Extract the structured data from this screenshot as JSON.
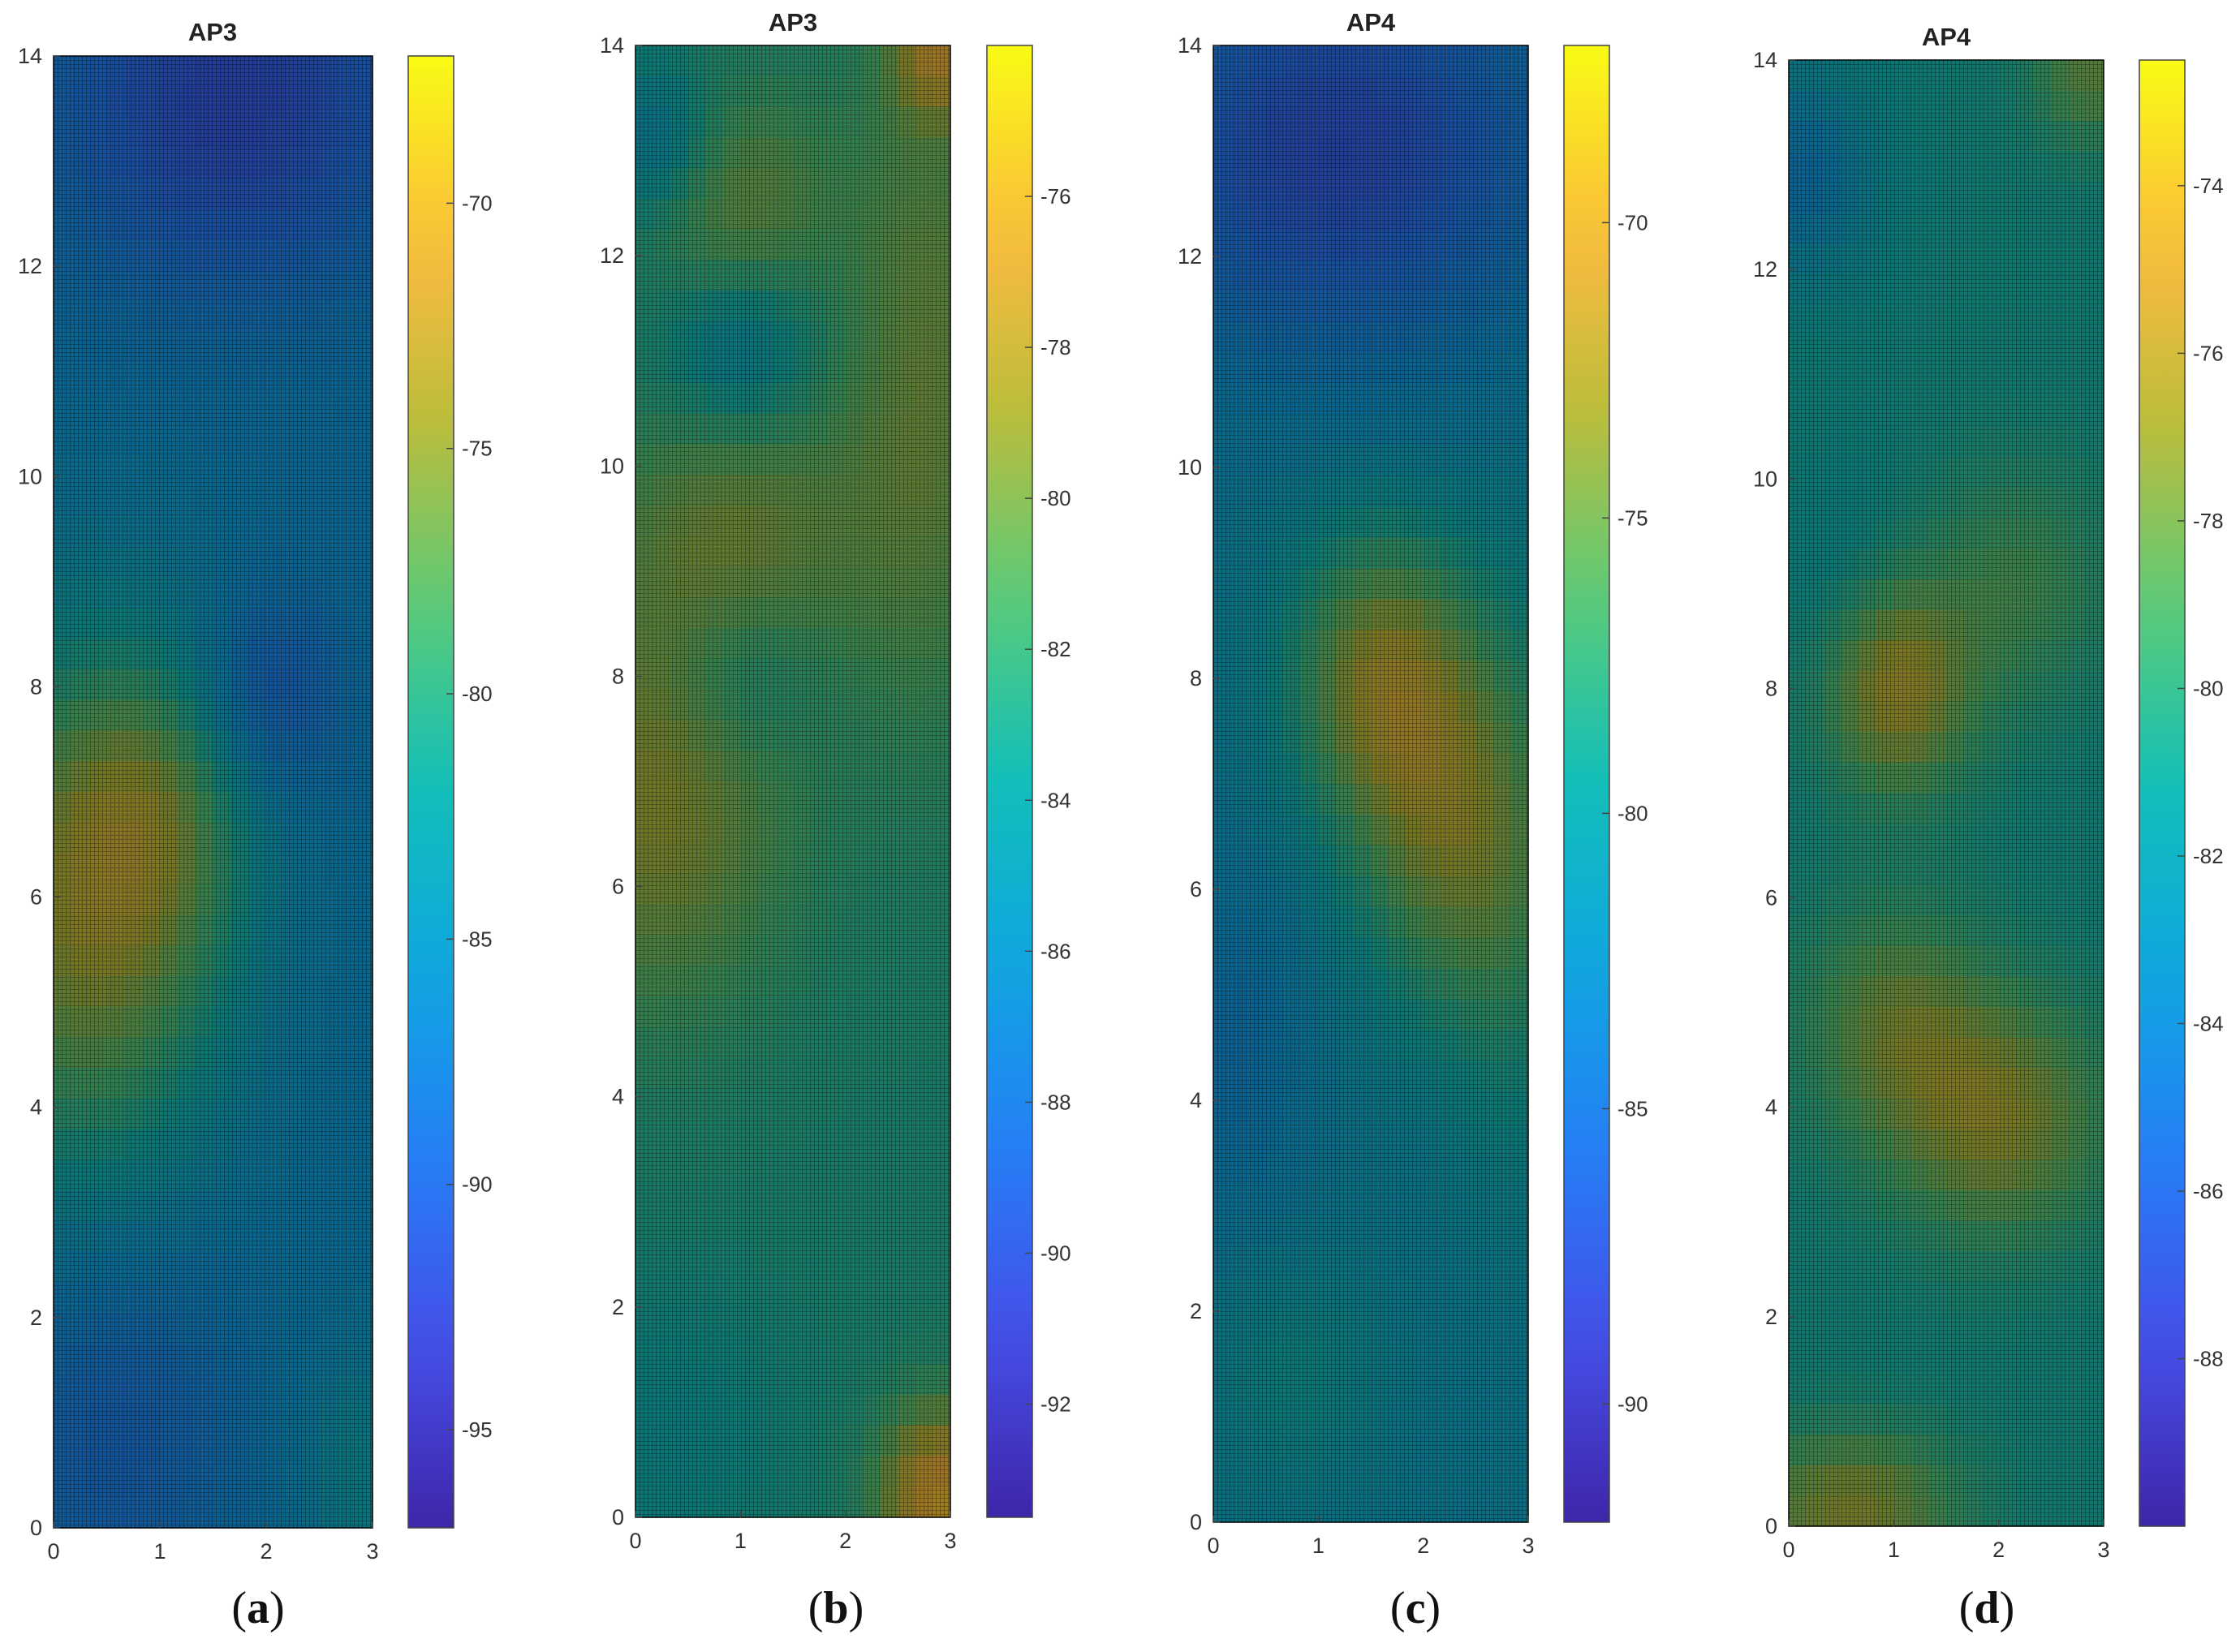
{
  "chart_data": [
    {
      "type": "heatmap",
      "caption": "a",
      "title": "AP3",
      "xlim": [
        0,
        3
      ],
      "ylim": [
        0,
        14
      ],
      "xticks": [
        "0",
        "1",
        "2",
        "3"
      ],
      "yticks": [
        "0",
        "2",
        "4",
        "6",
        "8",
        "10",
        "12",
        "14"
      ],
      "colorbar": {
        "min": -97,
        "max": -67,
        "ticks": [
          "-70",
          "-75",
          "-80",
          "-85",
          "-90",
          "-95"
        ],
        "tick_values": [
          -70,
          -75,
          -80,
          -85,
          -90,
          -95
        ]
      },
      "grid": true,
      "colormap": "parula",
      "base_value": -86,
      "features": [
        {
          "x": 0.3,
          "y": 5.8,
          "sx": 0.9,
          "sy": 1.8,
          "value": 11
        },
        {
          "x": 1.0,
          "y": 6.8,
          "sx": 0.6,
          "sy": 1.0,
          "value": 5
        },
        {
          "x": 1.7,
          "y": 13.6,
          "sx": 1.2,
          "sy": 1.3,
          "value": -6
        },
        {
          "x": 2.0,
          "y": 7.9,
          "sx": 0.5,
          "sy": 0.7,
          "value": -4
        },
        {
          "x": 0.6,
          "y": 1.0,
          "sx": 0.8,
          "sy": 1.4,
          "value": -3
        },
        {
          "x": 2.9,
          "y": 0.5,
          "sx": 0.4,
          "sy": 0.9,
          "value": 3
        }
      ]
    },
    {
      "type": "heatmap",
      "caption": "b",
      "title": "AP3",
      "xlim": [
        0,
        3
      ],
      "ylim": [
        0,
        14
      ],
      "xticks": [
        "0",
        "1",
        "2",
        "3"
      ],
      "yticks": [
        "0",
        "2",
        "4",
        "6",
        "8",
        "10",
        "12",
        "14"
      ],
      "colorbar": {
        "min": -93.5,
        "max": -74,
        "ticks": [
          "-76",
          "-78",
          "-80",
          "-82",
          "-84",
          "-86",
          "-88",
          "-90",
          "-92"
        ],
        "tick_values": [
          -76,
          -78,
          -80,
          -82,
          -84,
          -86,
          -88,
          -90,
          -92
        ]
      },
      "grid": true,
      "colormap": "parula",
      "base_value": -83,
      "features": [
        {
          "x": 0.2,
          "y": 6.8,
          "sx": 0.9,
          "sy": 1.4,
          "value": 4
        },
        {
          "x": 1.0,
          "y": 9.4,
          "sx": 0.9,
          "sy": 1.0,
          "value": 3
        },
        {
          "x": 1.0,
          "y": 12.5,
          "sx": 0.6,
          "sy": 0.8,
          "value": 3
        },
        {
          "x": 2.8,
          "y": 11.0,
          "sx": 0.6,
          "sy": 2.5,
          "value": 3
        },
        {
          "x": 1.0,
          "y": 11.1,
          "sx": 0.5,
          "sy": 0.6,
          "value": -3
        },
        {
          "x": 1.0,
          "y": 8.0,
          "sx": 0.5,
          "sy": 0.6,
          "value": -2
        },
        {
          "x": 0.2,
          "y": 13.1,
          "sx": 0.4,
          "sy": 0.5,
          "value": -3
        },
        {
          "x": 2.9,
          "y": 0.2,
          "sx": 0.4,
          "sy": 0.6,
          "value": 7
        },
        {
          "x": 2.9,
          "y": 13.9,
          "sx": 0.3,
          "sy": 0.4,
          "value": 5
        },
        {
          "x": 0.3,
          "y": 0.8,
          "sx": 0.8,
          "sy": 1.0,
          "value": -1
        }
      ]
    },
    {
      "type": "heatmap",
      "caption": "c",
      "title": "AP4",
      "xlim": [
        0,
        3
      ],
      "ylim": [
        0,
        14
      ],
      "xticks": [
        "0",
        "1",
        "2",
        "3"
      ],
      "yticks": [
        "0",
        "2",
        "4",
        "6",
        "8",
        "10",
        "12",
        "14"
      ],
      "colorbar": {
        "min": -92,
        "max": -67,
        "ticks": [
          "-70",
          "-75",
          "-80",
          "-85",
          "-90"
        ],
        "tick_values": [
          -70,
          -75,
          -80,
          -85,
          -90
        ]
      },
      "grid": true,
      "colormap": "parula",
      "base_value": -81.5,
      "features": [
        {
          "x": 1.6,
          "y": 8.0,
          "sx": 0.6,
          "sy": 1.0,
          "value": 8
        },
        {
          "x": 2.2,
          "y": 6.5,
          "sx": 0.6,
          "sy": 1.2,
          "value": 6
        },
        {
          "x": 2.9,
          "y": 6.0,
          "sx": 0.5,
          "sy": 2.0,
          "value": 3
        },
        {
          "x": 1.2,
          "y": 13.0,
          "sx": 1.5,
          "sy": 1.4,
          "value": -6
        },
        {
          "x": 0.2,
          "y": 4.5,
          "sx": 0.5,
          "sy": 1.2,
          "value": -2
        },
        {
          "x": 0.8,
          "y": 1.4,
          "sx": 0.6,
          "sy": 0.8,
          "value": 2
        }
      ]
    },
    {
      "type": "heatmap",
      "caption": "d",
      "title": "AP4",
      "xlim": [
        0,
        3
      ],
      "ylim": [
        0,
        14
      ],
      "xticks": [
        "0",
        "1",
        "2",
        "3"
      ],
      "yticks": [
        "0",
        "2",
        "4",
        "6",
        "8",
        "10",
        "12",
        "14"
      ],
      "colorbar": {
        "min": -90,
        "max": -72.5,
        "ticks": [
          "-74",
          "-76",
          "-78",
          "-80",
          "-82",
          "-84",
          "-86",
          "-88"
        ],
        "tick_values": [
          -74,
          -76,
          -78,
          -80,
          -82,
          -84,
          -86,
          -88
        ]
      },
      "grid": true,
      "colormap": "parula",
      "base_value": -81,
      "features": [
        {
          "x": 1.0,
          "y": 8.0,
          "sx": 0.5,
          "sy": 0.7,
          "value": 5
        },
        {
          "x": 2.0,
          "y": 3.9,
          "sx": 0.7,
          "sy": 0.8,
          "value": 4
        },
        {
          "x": 1.0,
          "y": 4.8,
          "sx": 0.6,
          "sy": 0.8,
          "value": 3
        },
        {
          "x": 2.2,
          "y": 9.0,
          "sx": 0.6,
          "sy": 0.8,
          "value": 2
        },
        {
          "x": 0.6,
          "y": 0.2,
          "sx": 0.7,
          "sy": 0.5,
          "value": 4
        },
        {
          "x": 2.9,
          "y": 13.9,
          "sx": 0.4,
          "sy": 0.5,
          "value": 3
        },
        {
          "x": 0.1,
          "y": 12.9,
          "sx": 0.5,
          "sy": 0.7,
          "value": -3
        },
        {
          "x": 0.5,
          "y": 8.6,
          "sx": 0.4,
          "sy": 1.0,
          "value": -1
        }
      ]
    }
  ]
}
